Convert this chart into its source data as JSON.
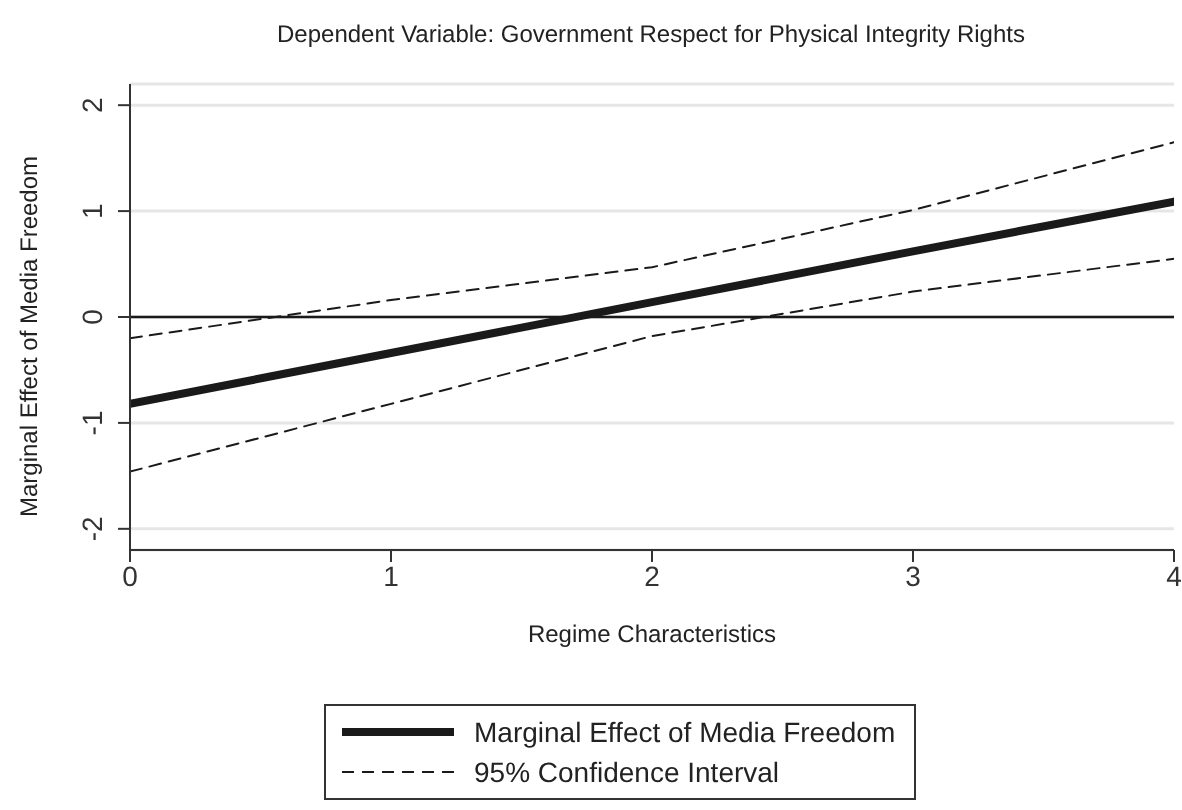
{
  "chart_data": {
    "type": "line",
    "title": "Dependent Variable: Government Respect for Physical Integrity Rights",
    "xlabel": "Regime Characteristics",
    "ylabel": "Marginal Effect of Media Freedom",
    "x": [
      0,
      1,
      2,
      3,
      4
    ],
    "series": [
      {
        "name": "Marginal Effect of Media Freedom",
        "color": "#1a1a1a",
        "line_style": "solid",
        "values": [
          -0.82,
          -0.34,
          0.14,
          0.62,
          1.09
        ]
      },
      {
        "name": "95% Confidence Interval",
        "color": "#1a1a1a",
        "line_style": "dashed",
        "values": [
          -0.2,
          0.16,
          0.47,
          1.01,
          1.65
        ]
      },
      {
        "color": "#1a1a1a",
        "line_style": "dashed",
        "values": [
          -1.46,
          -0.82,
          -0.18,
          0.24,
          0.55
        ]
      }
    ],
    "xlim": [
      0,
      4
    ],
    "xticks": [
      0,
      1,
      2,
      3,
      4
    ],
    "ylim": [
      -2.2,
      2.2
    ],
    "yticks": [
      -2,
      -1,
      0,
      1,
      2
    ],
    "grid": "y",
    "legend": "bottom",
    "marker": "none",
    "ref_lines": [
      {
        "axis": "y",
        "value": 0,
        "color": "#1a1a1a"
      }
    ]
  }
}
